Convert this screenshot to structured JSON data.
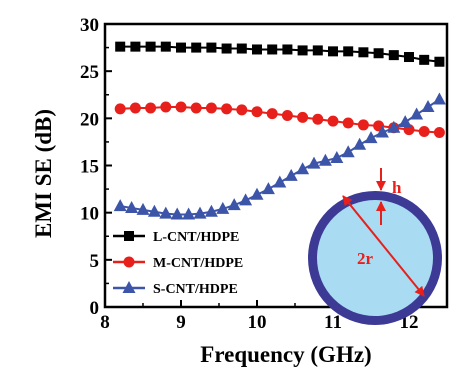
{
  "chart_data": {
    "type": "line",
    "title": "",
    "xlabel": "Frequency (GHz)",
    "ylabel": "EMI SE (dB)",
    "xlim": [
      8,
      12.5
    ],
    "ylim": [
      0,
      30
    ],
    "xticks": [
      8,
      9,
      10,
      11,
      12
    ],
    "yticks": [
      0,
      5,
      10,
      15,
      20,
      25,
      30
    ],
    "grid": false,
    "legend": "bottom-left",
    "series": [
      {
        "name": "L-CNT/HDPE",
        "color": "#000000",
        "marker": "square",
        "x": [
          8.2,
          8.4,
          8.6,
          8.8,
          9.0,
          9.2,
          9.4,
          9.6,
          9.8,
          10.0,
          10.2,
          10.4,
          10.6,
          10.8,
          11.0,
          11.2,
          11.4,
          11.6,
          11.8,
          12.0,
          12.2,
          12.4
        ],
        "y": [
          27.6,
          27.6,
          27.6,
          27.6,
          27.5,
          27.5,
          27.5,
          27.4,
          27.4,
          27.3,
          27.3,
          27.3,
          27.2,
          27.2,
          27.1,
          27.1,
          27.0,
          26.9,
          26.7,
          26.5,
          26.2,
          26.0
        ]
      },
      {
        "name": "M-CNT/HDPE",
        "color": "#e8201c",
        "marker": "circle",
        "x": [
          8.2,
          8.4,
          8.6,
          8.8,
          9.0,
          9.2,
          9.4,
          9.6,
          9.8,
          10.0,
          10.2,
          10.4,
          10.6,
          10.8,
          11.0,
          11.2,
          11.4,
          11.6,
          11.8,
          12.0,
          12.2,
          12.4
        ],
        "y": [
          21.0,
          21.1,
          21.1,
          21.2,
          21.2,
          21.1,
          21.1,
          21.0,
          20.9,
          20.7,
          20.5,
          20.3,
          20.1,
          19.9,
          19.7,
          19.5,
          19.3,
          19.2,
          19.0,
          18.8,
          18.6,
          18.5
        ]
      },
      {
        "name": "S-CNT/HDPE",
        "color": "#3d55a8",
        "marker": "triangle",
        "x": [
          8.2,
          8.35,
          8.5,
          8.65,
          8.8,
          8.95,
          9.1,
          9.25,
          9.4,
          9.55,
          9.7,
          9.85,
          10.0,
          10.15,
          10.3,
          10.45,
          10.6,
          10.75,
          10.9,
          11.05,
          11.2,
          11.35,
          11.5,
          11.65,
          11.8,
          11.95,
          12.1,
          12.25,
          12.4
        ],
        "y": [
          10.7,
          10.5,
          10.3,
          10.1,
          9.9,
          9.8,
          9.8,
          9.9,
          10.1,
          10.4,
          10.8,
          11.3,
          11.9,
          12.5,
          13.2,
          13.9,
          14.6,
          15.2,
          15.5,
          15.8,
          16.4,
          17.2,
          17.9,
          18.5,
          19.0,
          19.6,
          20.4,
          21.2,
          22.0
        ]
      }
    ]
  },
  "inset": {
    "labels": {
      "thickness": "h",
      "diameter": "2r"
    },
    "colors": {
      "ring": "#3d3a96",
      "fill": "#a9dbf3",
      "arrow": "#e8201c"
    }
  }
}
